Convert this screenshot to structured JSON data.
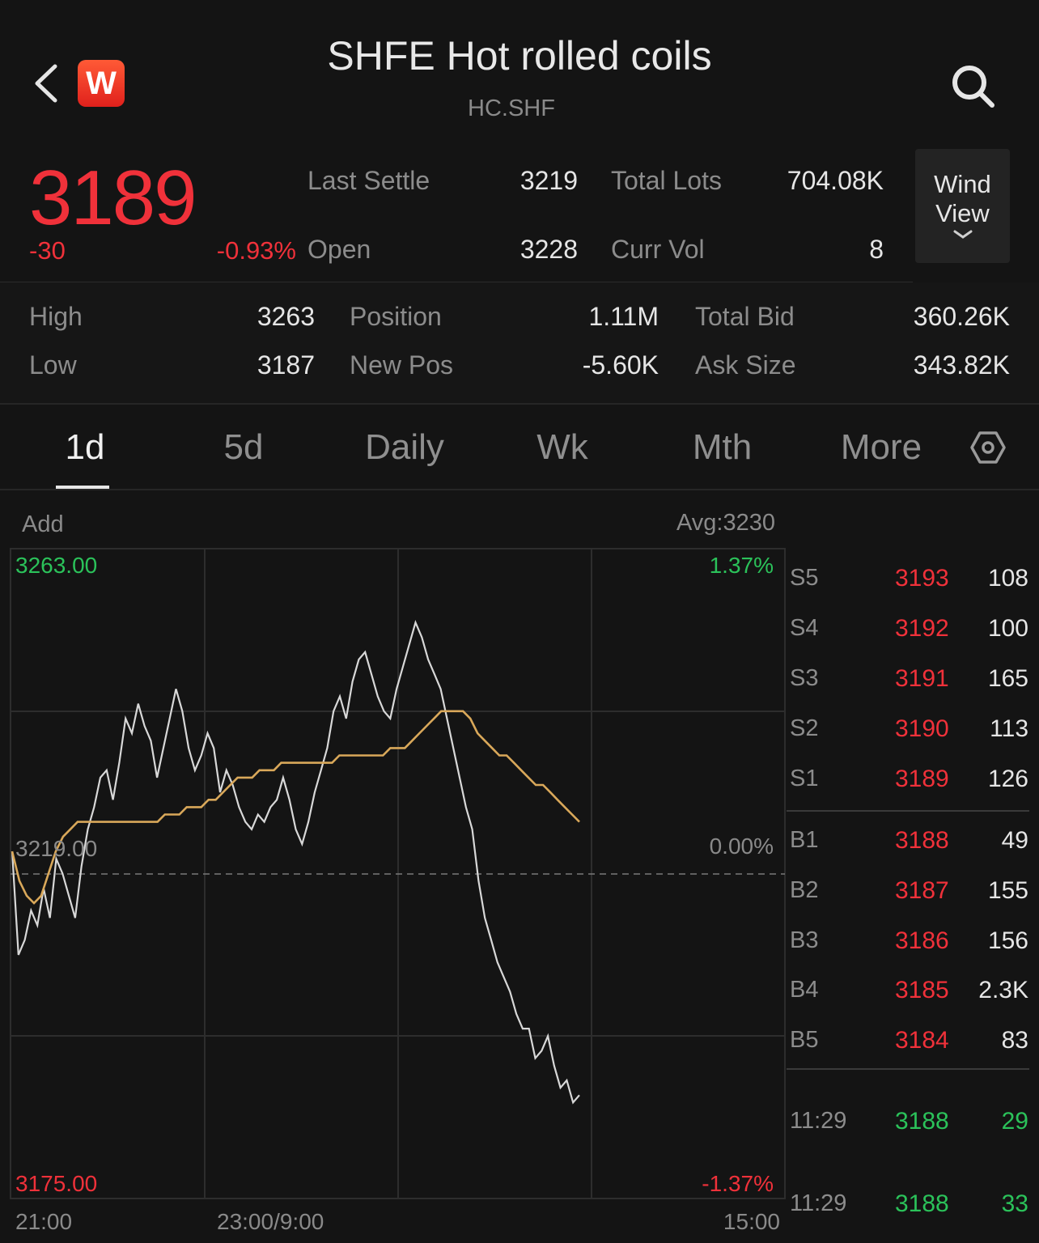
{
  "header": {
    "title": "SHFE Hot rolled coils",
    "code": "HC.SHF",
    "logo_letter": "W"
  },
  "quote": {
    "price": "3189",
    "change": "-30",
    "change_pct": "-0.93%",
    "last_settle_label": "Last Settle",
    "last_settle": "3219",
    "open_label": "Open",
    "open": "3228",
    "total_lots_label": "Total Lots",
    "total_lots": "704.08K",
    "curr_vol_label": "Curr Vol",
    "curr_vol": "8",
    "wind_view_line1": "Wind",
    "wind_view_line2": "View"
  },
  "stats": {
    "high_label": "High",
    "high": "3263",
    "low_label": "Low",
    "low": "3187",
    "position_label": "Position",
    "position": "1.11M",
    "new_pos_label": "New Pos",
    "new_pos": "-5.60K",
    "total_bid_label": "Total Bid",
    "total_bid": "360.26K",
    "ask_size_label": "Ask Size",
    "ask_size": "343.82K"
  },
  "tabs": [
    "1d",
    "5d",
    "Daily",
    "Wk",
    "Mth",
    "More"
  ],
  "chart_meta": {
    "add_label": "Add",
    "avg_label": "Avg:3230",
    "y_top": "3263.00",
    "y_mid": "3219.00",
    "y_bottom": "3175.00",
    "pct_top": "1.37%",
    "pct_mid": "0.00%",
    "pct_bottom": "-1.37%",
    "x_start": "21:00",
    "x_mid": "23:00/9:00",
    "x_end": "15:00"
  },
  "chart_data": {
    "type": "line",
    "ylim": [
      3175,
      3263
    ],
    "reference": 3219,
    "series": [
      {
        "values": [
          3222,
          3208,
          3210,
          3214,
          3212,
          3217,
          3213,
          3221,
          3219,
          3216,
          3213,
          3220,
          3225,
          3228,
          3232,
          3233,
          3229,
          3234,
          3240,
          3238,
          3242,
          3239,
          3237,
          3232,
          3236,
          3240,
          3244,
          3241,
          3236,
          3233,
          3235,
          3238,
          3236,
          3230,
          3233,
          3231,
          3228,
          3226,
          3225,
          3227,
          3226,
          3228,
          3229,
          3232,
          3229,
          3225,
          3223,
          3226,
          3230,
          3233,
          3236,
          3241,
          3243,
          3240,
          3245,
          3248,
          3249,
          3246,
          3243,
          3241,
          3240,
          3244,
          3247,
          3250,
          3253,
          3251,
          3248,
          3246,
          3244,
          3240,
          3236,
          3232,
          3228,
          3225,
          3218,
          3213,
          3210,
          3207,
          3205,
          3203,
          3200,
          3198,
          3198,
          3194,
          3195,
          3197,
          3193,
          3190,
          3191,
          3188,
          3189
        ],
        "color": "#d8d8d8"
      },
      {
        "values": [
          3222,
          3218,
          3216,
          3215,
          3216,
          3219,
          3222,
          3224,
          3225,
          3226,
          3226,
          3226,
          3226,
          3226,
          3226,
          3226,
          3226,
          3226,
          3226,
          3226,
          3226,
          3227,
          3227,
          3227,
          3228,
          3228,
          3228,
          3229,
          3229,
          3230,
          3231,
          3232,
          3232,
          3232,
          3233,
          3233,
          3233,
          3234,
          3234,
          3234,
          3234,
          3234,
          3234,
          3234,
          3234,
          3235,
          3235,
          3235,
          3235,
          3235,
          3235,
          3235,
          3236,
          3236,
          3236,
          3237,
          3238,
          3239,
          3240,
          3241,
          3241,
          3241,
          3241,
          3240,
          3238,
          3237,
          3236,
          3235,
          3235,
          3234,
          3233,
          3232,
          3231,
          3231,
          3230,
          3229,
          3228,
          3227,
          3226
        ],
        "color": "#d9a85a"
      }
    ]
  },
  "order_book": {
    "asks": [
      {
        "label": "S5",
        "price": "3193",
        "size": "108"
      },
      {
        "label": "S4",
        "price": "3192",
        "size": "100"
      },
      {
        "label": "S3",
        "price": "3191",
        "size": "165"
      },
      {
        "label": "S2",
        "price": "3190",
        "size": "113"
      },
      {
        "label": "S1",
        "price": "3189",
        "size": "126"
      }
    ],
    "bids": [
      {
        "label": "B1",
        "price": "3188",
        "size": "49"
      },
      {
        "label": "B2",
        "price": "3187",
        "size": "155"
      },
      {
        "label": "B3",
        "price": "3186",
        "size": "156"
      },
      {
        "label": "B4",
        "price": "3185",
        "size": "2.3K"
      },
      {
        "label": "B5",
        "price": "3184",
        "size": "83"
      }
    ],
    "trades": [
      {
        "time": "11:29",
        "price": "3188",
        "size": "29"
      },
      {
        "time": "11:29",
        "price": "3188",
        "size": "33"
      }
    ]
  },
  "colors": {
    "up": "#f0313a",
    "down": "#2bc25a",
    "avg_line": "#d9a85a",
    "price_line": "#d8d8d8"
  }
}
